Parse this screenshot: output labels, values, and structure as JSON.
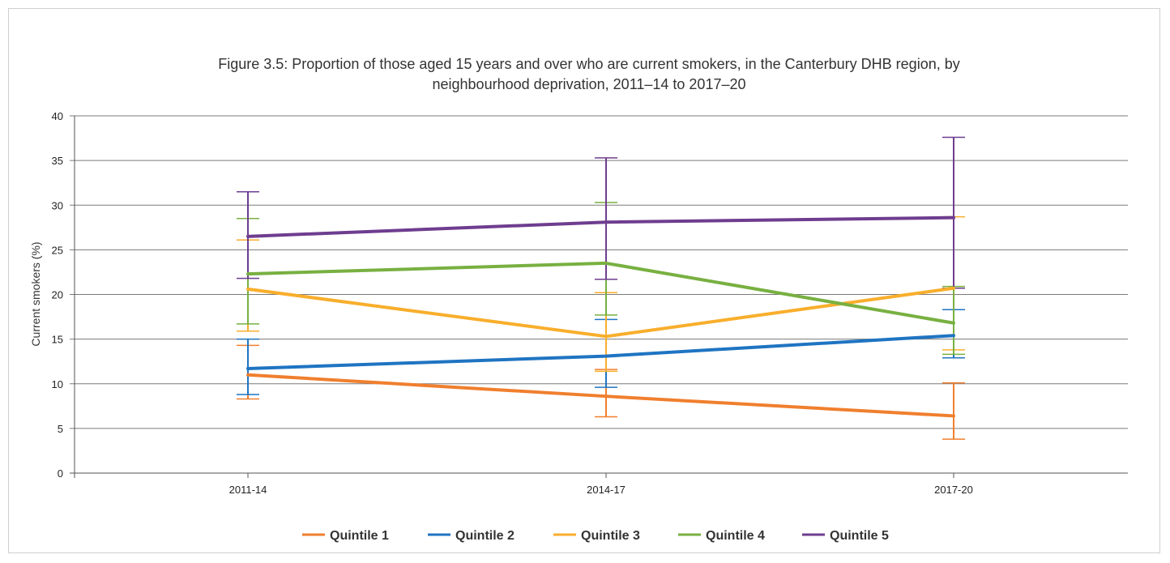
{
  "chart_data": {
    "type": "line",
    "title_line1": "Figure 3.5: Proportion of those aged 15 years and over who are current smokers, in the Canterbury DHB region, by",
    "title_line2": "neighbourhood deprivation, 2011–14 to 2017–20",
    "ylabel": "Current smokers (%)",
    "xlabel": "",
    "categories": [
      "2011-14",
      "2014-17",
      "2017-20"
    ],
    "ylim": [
      0,
      40
    ],
    "yticks": [
      0,
      5,
      10,
      15,
      20,
      25,
      30,
      35,
      40
    ],
    "grid": true,
    "legend_position": "bottom",
    "series": [
      {
        "name": "Quintile 1",
        "color": "#f07f2e",
        "values": [
          11.0,
          8.6,
          6.4
        ],
        "lower": [
          8.3,
          6.3,
          3.8
        ],
        "upper": [
          14.3,
          11.6,
          10.1
        ]
      },
      {
        "name": "Quintile 2",
        "color": "#1f74c2",
        "values": [
          11.7,
          13.1,
          15.4
        ],
        "lower": [
          8.8,
          9.6,
          12.9
        ],
        "upper": [
          15.0,
          17.2,
          18.3
        ]
      },
      {
        "name": "Quintile 3",
        "color": "#f8ae2c",
        "values": [
          20.6,
          15.3,
          20.7
        ],
        "lower": [
          15.9,
          11.4,
          13.8
        ],
        "upper": [
          26.1,
          20.2,
          28.7
        ]
      },
      {
        "name": "Quintile 4",
        "color": "#78b041",
        "values": [
          22.3,
          23.5,
          16.8
        ],
        "lower": [
          16.7,
          17.7,
          13.3
        ],
        "upper": [
          28.5,
          30.3,
          20.9
        ]
      },
      {
        "name": "Quintile 5",
        "color": "#6e3d8f",
        "values": [
          26.5,
          28.1,
          28.6
        ],
        "lower": [
          21.8,
          21.7,
          20.7
        ],
        "upper": [
          31.5,
          35.3,
          37.6
        ]
      }
    ]
  }
}
